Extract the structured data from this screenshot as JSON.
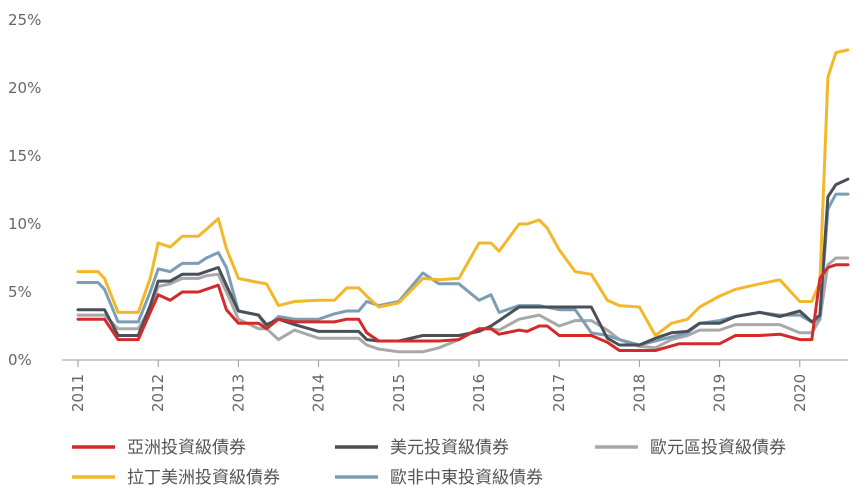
{
  "chart_data": {
    "type": "line",
    "x_ticks": [
      "2011",
      "2012",
      "2013",
      "2014",
      "2015",
      "2016",
      "2017",
      "2018",
      "2019",
      "2020"
    ],
    "y_ticks": [
      "0%",
      "5%",
      "10%",
      "15%",
      "20%",
      "25%"
    ],
    "ylim": [
      0,
      25
    ],
    "xlim": [
      2011.0,
      2020.6
    ],
    "grid": false,
    "legend_position": "bottom",
    "colors": {
      "asia_ig": "#d42a2a",
      "usd_ig": "#4a5058",
      "euro_ig": "#a8a8a8",
      "latam_ig": "#f2b829",
      "emea_ig": "#7b9eb4"
    },
    "series": [
      {
        "key": "asia_ig",
        "name": "亞洲投資級債券",
        "x": [
          2011.0,
          2011.25,
          2011.33,
          2011.5,
          2011.75,
          2011.9,
          2012.0,
          2012.15,
          2012.3,
          2012.5,
          2012.6,
          2012.75,
          2012.85,
          2013.0,
          2013.25,
          2013.35,
          2013.5,
          2013.7,
          2014.0,
          2014.2,
          2014.35,
          2014.5,
          2014.6,
          2014.75,
          2015.0,
          2015.5,
          2015.75,
          2016.0,
          2016.15,
          2016.25,
          2016.5,
          2016.6,
          2016.75,
          2016.85,
          2017.0,
          2017.2,
          2017.4,
          2017.6,
          2017.75,
          2018.0,
          2018.2,
          2018.5,
          2018.7,
          2019.0,
          2019.2,
          2019.5,
          2019.75,
          2020.0,
          2020.15,
          2020.25,
          2020.35,
          2020.45,
          2020.6
        ],
        "values": [
          3.0,
          3.0,
          3.0,
          1.5,
          1.5,
          3.5,
          4.8,
          4.4,
          5.0,
          5.0,
          5.2,
          5.5,
          3.7,
          2.7,
          2.7,
          2.3,
          3.0,
          2.8,
          2.8,
          2.8,
          3.0,
          3.0,
          2.0,
          1.4,
          1.4,
          1.4,
          1.5,
          2.3,
          2.3,
          1.9,
          2.2,
          2.1,
          2.5,
          2.5,
          1.8,
          1.8,
          1.8,
          1.3,
          0.7,
          0.7,
          0.7,
          1.2,
          1.2,
          1.2,
          1.8,
          1.8,
          1.9,
          1.5,
          1.5,
          6.0,
          6.8,
          7.0,
          7.0
        ]
      },
      {
        "key": "usd_ig",
        "name": "美元投資級債券",
        "x": [
          2011.0,
          2011.25,
          2011.33,
          2011.5,
          2011.75,
          2011.9,
          2012.0,
          2012.15,
          2012.3,
          2012.5,
          2012.6,
          2012.75,
          2012.85,
          2013.0,
          2013.25,
          2013.35,
          2013.5,
          2013.7,
          2014.0,
          2014.2,
          2014.35,
          2014.5,
          2014.6,
          2014.75,
          2015.0,
          2015.3,
          2015.5,
          2015.75,
          2016.0,
          2016.15,
          2016.25,
          2016.5,
          2016.75,
          2017.0,
          2017.2,
          2017.4,
          2017.6,
          2017.75,
          2018.0,
          2018.2,
          2018.4,
          2018.6,
          2018.75,
          2019.0,
          2019.2,
          2019.5,
          2019.75,
          2020.0,
          2020.15,
          2020.25,
          2020.35,
          2020.45,
          2020.6
        ],
        "values": [
          3.7,
          3.7,
          3.7,
          1.8,
          1.8,
          4.0,
          5.8,
          5.8,
          6.3,
          6.3,
          6.5,
          6.8,
          5.5,
          3.6,
          3.3,
          2.6,
          3.0,
          2.6,
          2.1,
          2.1,
          2.1,
          2.1,
          1.5,
          1.4,
          1.4,
          1.8,
          1.8,
          1.8,
          2.1,
          2.5,
          2.9,
          3.9,
          3.9,
          3.9,
          3.9,
          3.9,
          1.6,
          1.1,
          1.1,
          1.6,
          2.0,
          2.1,
          2.7,
          2.7,
          3.2,
          3.5,
          3.2,
          3.6,
          2.8,
          3.3,
          12.0,
          12.9,
          13.3
        ]
      },
      {
        "key": "euro_ig",
        "name": "歐元區投資級債券",
        "x": [
          2011.0,
          2011.25,
          2011.33,
          2011.5,
          2011.75,
          2011.9,
          2012.0,
          2012.15,
          2012.3,
          2012.5,
          2012.6,
          2012.75,
          2012.85,
          2013.0,
          2013.25,
          2013.35,
          2013.5,
          2013.7,
          2014.0,
          2014.2,
          2014.35,
          2014.5,
          2014.6,
          2014.75,
          2015.0,
          2015.3,
          2015.5,
          2015.75,
          2016.0,
          2016.15,
          2016.25,
          2016.5,
          2016.75,
          2017.0,
          2017.2,
          2017.4,
          2017.6,
          2017.75,
          2018.0,
          2018.2,
          2018.4,
          2018.6,
          2018.75,
          2019.0,
          2019.2,
          2019.5,
          2019.75,
          2020.0,
          2020.15,
          2020.25,
          2020.35,
          2020.45,
          2020.6
        ],
        "values": [
          3.3,
          3.3,
          3.3,
          2.3,
          2.3,
          3.8,
          5.4,
          5.6,
          6.0,
          6.0,
          6.2,
          6.3,
          5.0,
          3.0,
          2.3,
          2.3,
          1.5,
          2.2,
          1.6,
          1.6,
          1.6,
          1.6,
          1.1,
          0.8,
          0.6,
          0.6,
          0.9,
          1.5,
          2.3,
          2.3,
          2.2,
          3.0,
          3.3,
          2.5,
          2.9,
          2.9,
          2.2,
          1.5,
          1.0,
          0.9,
          1.5,
          1.8,
          2.2,
          2.2,
          2.6,
          2.6,
          2.6,
          2.0,
          2.0,
          3.0,
          7.0,
          7.5,
          7.5
        ]
      },
      {
        "key": "latam_ig",
        "name": "拉丁美洲投資級債券",
        "x": [
          2011.0,
          2011.25,
          2011.33,
          2011.5,
          2011.75,
          2011.9,
          2012.0,
          2012.15,
          2012.3,
          2012.5,
          2012.6,
          2012.75,
          2012.85,
          2013.0,
          2013.25,
          2013.35,
          2013.5,
          2013.7,
          2014.0,
          2014.2,
          2014.35,
          2014.5,
          2014.6,
          2014.75,
          2015.0,
          2015.3,
          2015.5,
          2015.75,
          2016.0,
          2016.15,
          2016.25,
          2016.5,
          2016.6,
          2016.75,
          2016.85,
          2017.0,
          2017.2,
          2017.4,
          2017.6,
          2017.75,
          2018.0,
          2018.2,
          2018.4,
          2018.6,
          2018.75,
          2019.0,
          2019.2,
          2019.5,
          2019.75,
          2020.0,
          2020.15,
          2020.25,
          2020.35,
          2020.45,
          2020.6
        ],
        "values": [
          6.5,
          6.5,
          6.0,
          3.5,
          3.5,
          6.0,
          8.6,
          8.3,
          9.1,
          9.1,
          9.6,
          10.4,
          8.2,
          6.0,
          5.7,
          5.6,
          4.0,
          4.3,
          4.4,
          4.4,
          5.3,
          5.3,
          4.7,
          3.9,
          4.2,
          6.0,
          5.9,
          6.0,
          8.6,
          8.6,
          8.0,
          10.0,
          10.0,
          10.3,
          9.7,
          8.1,
          6.5,
          6.3,
          4.4,
          4.0,
          3.9,
          1.8,
          2.7,
          3.0,
          3.9,
          4.7,
          5.2,
          5.6,
          5.9,
          4.3,
          4.3,
          5.7,
          20.8,
          22.6,
          22.8
        ]
      },
      {
        "key": "emea_ig",
        "name": "歐非中東投資級債券",
        "x": [
          2011.0,
          2011.25,
          2011.33,
          2011.5,
          2011.75,
          2011.9,
          2012.0,
          2012.15,
          2012.3,
          2012.5,
          2012.6,
          2012.75,
          2012.85,
          2013.0,
          2013.25,
          2013.35,
          2013.5,
          2013.7,
          2014.0,
          2014.2,
          2014.35,
          2014.5,
          2014.6,
          2014.75,
          2015.0,
          2015.3,
          2015.5,
          2015.75,
          2016.0,
          2016.15,
          2016.25,
          2016.5,
          2016.75,
          2017.0,
          2017.2,
          2017.4,
          2017.6,
          2017.75,
          2018.0,
          2018.2,
          2018.4,
          2018.6,
          2018.75,
          2019.0,
          2019.2,
          2019.5,
          2019.75,
          2020.0,
          2020.15,
          2020.25,
          2020.35,
          2020.45,
          2020.6
        ],
        "values": [
          5.7,
          5.7,
          5.2,
          2.8,
          2.8,
          5.0,
          6.7,
          6.5,
          7.1,
          7.1,
          7.5,
          7.9,
          6.8,
          3.6,
          3.3,
          2.4,
          3.2,
          3.0,
          3.0,
          3.4,
          3.6,
          3.6,
          4.3,
          4.0,
          4.3,
          6.4,
          5.6,
          5.6,
          4.4,
          4.8,
          3.5,
          4.0,
          4.0,
          3.7,
          3.7,
          2.0,
          1.8,
          1.5,
          1.1,
          1.4,
          1.7,
          2.0,
          2.7,
          2.9,
          3.2,
          3.5,
          3.3,
          3.3,
          2.8,
          3.0,
          11.1,
          12.2,
          12.2
        ]
      }
    ]
  }
}
